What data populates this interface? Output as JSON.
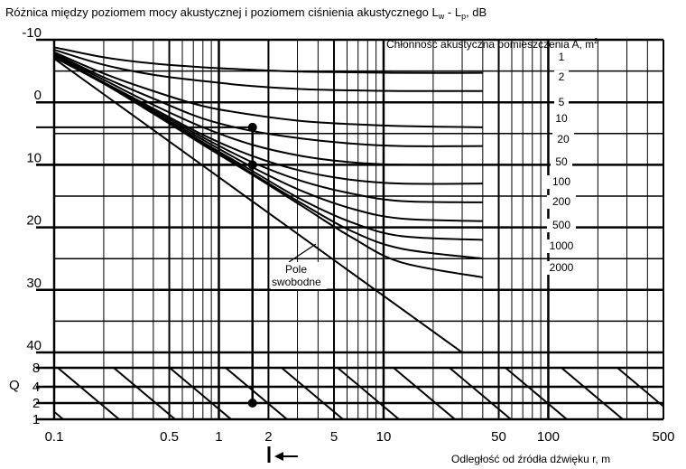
{
  "chart_data": {
    "type": "line",
    "title_main": "Różnica między poziomem mocy akustycznej i poziomem ciśnienia akustycznego L",
    "title_sub_w": "w",
    "title_dash": " - L",
    "title_sub_p": "p",
    "title_end": ", dB",
    "xlabel": "Odległość od źródła dźwięku r, m",
    "q_label": "Q",
    "legend_title": "Chłonność akustyczna pomieszczenia A, m",
    "legend_sup": "2",
    "free_field_label_1": "Pole",
    "free_field_label_2": "swobodne",
    "x_scale": "log",
    "xlim": [
      0.1,
      500
    ],
    "ylim": [
      -10,
      40
    ],
    "x_ticks": [
      {
        "value": 0.1,
        "label": "0.1"
      },
      {
        "value": 0.5,
        "label": "0.5"
      },
      {
        "value": 1,
        "label": "1"
      },
      {
        "value": 2,
        "label": "2"
      },
      {
        "value": 5,
        "label": "5"
      },
      {
        "value": 10,
        "label": "10"
      },
      {
        "value": 50,
        "label": "50"
      },
      {
        "value": 100,
        "label": "100"
      },
      {
        "value": 500,
        "label": "500"
      }
    ],
    "y_ticks": [
      {
        "value": -10,
        "label": "-10"
      },
      {
        "value": 0,
        "label": "0"
      },
      {
        "value": 10,
        "label": "10"
      },
      {
        "value": 20,
        "label": "20"
      },
      {
        "value": 30,
        "label": "30"
      },
      {
        "value": 40,
        "label": "40"
      }
    ],
    "q_ticks": [
      {
        "value": 8,
        "label": "8"
      },
      {
        "value": 4,
        "label": "4"
      },
      {
        "value": 2,
        "label": "2"
      },
      {
        "value": 1,
        "label": "1"
      }
    ],
    "series": [
      {
        "name": "1",
        "values": [
          -8.8,
          -7.2,
          -6.2,
          -5.6,
          -5.2,
          -4.9,
          -4.8,
          -4.7,
          -4.7
        ]
      },
      {
        "name": "2",
        "values": [
          -8.4,
          -6.0,
          -4.4,
          -3.4,
          -2.6,
          -2.1,
          -1.9,
          -1.8,
          -1.8
        ]
      },
      {
        "name": "5",
        "values": [
          -8.0,
          -4.6,
          -1.8,
          0.6,
          2.0,
          3.0,
          3.5,
          3.8,
          4.0
        ]
      },
      {
        "name": "10",
        "values": [
          -7.8,
          -4.0,
          -0.6,
          2.6,
          4.6,
          5.8,
          6.6,
          7.0,
          7.0
        ]
      },
      {
        "name": "20",
        "values": [
          -7.6,
          -3.6,
          0.4,
          4.0,
          6.8,
          8.6,
          9.6,
          10.0,
          10.0
        ]
      },
      {
        "name": "50",
        "values": [
          -7.4,
          -3.2,
          1.0,
          5.2,
          8.6,
          11.0,
          12.4,
          13.0,
          13.0
        ]
      },
      {
        "name": "100",
        "values": [
          -7.2,
          -3.1,
          1.3,
          5.6,
          9.6,
          12.6,
          14.6,
          15.8,
          16.0
        ]
      },
      {
        "name": "200",
        "values": [
          -7.2,
          -3.0,
          1.6,
          6.0,
          10.4,
          14.2,
          17.0,
          18.6,
          19.0
        ]
      },
      {
        "name": "500",
        "values": [
          -7.2,
          -3.0,
          1.8,
          6.4,
          11.0,
          15.6,
          19.2,
          21.4,
          22.0
        ]
      },
      {
        "name": "1000",
        "values": [
          -7.2,
          -3.0,
          1.8,
          6.6,
          11.4,
          16.2,
          20.6,
          23.4,
          25.0
        ]
      },
      {
        "name": "2000",
        "values": [
          -7.2,
          -3.0,
          1.8,
          6.8,
          11.6,
          16.6,
          21.6,
          25.6,
          28.0
        ]
      }
    ],
    "series_x": [
      0.1,
      0.2,
      0.4,
      0.8,
      1.6,
      3.2,
      6.4,
      12.8,
      40
    ],
    "free_field": {
      "x": [
        0.1,
        30
      ],
      "y": [
        -7.0,
        40.0
      ]
    },
    "example": {
      "x": 1.6,
      "points_y": [
        4.0,
        10.0
      ],
      "q_value": 2
    }
  }
}
